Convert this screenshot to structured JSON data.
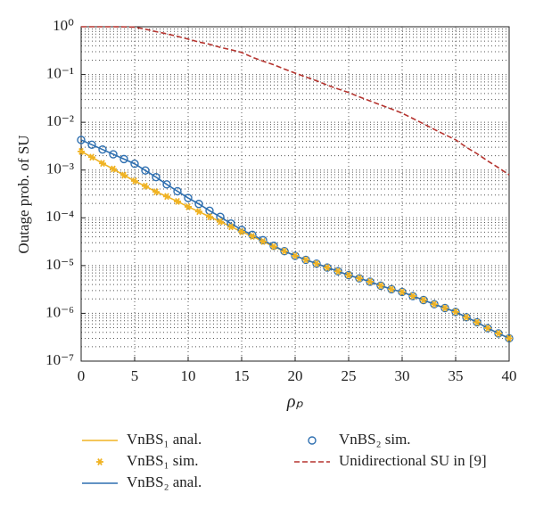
{
  "chart_data": {
    "type": "line",
    "log_y": true,
    "grid": true,
    "minor_grid": true,
    "xlabel": "ρₚ",
    "ylabel": "Outage prob. of SU",
    "x": [
      0,
      1,
      2,
      3,
      4,
      5,
      6,
      7,
      8,
      9,
      10,
      11,
      12,
      13,
      14,
      15,
      16,
      17,
      18,
      19,
      20,
      21,
      22,
      23,
      24,
      25,
      26,
      27,
      28,
      29,
      30,
      31,
      32,
      33,
      34,
      35,
      36,
      37,
      38,
      39,
      40
    ],
    "xlim": [
      0,
      40
    ],
    "xticks": [
      0,
      5,
      10,
      15,
      20,
      25,
      30,
      35,
      40
    ],
    "ylim": [
      1e-07,
      1
    ],
    "yticks": [
      {
        "value": 1e-07,
        "label": "10⁻⁷"
      },
      {
        "value": 1e-06,
        "label": "10⁻⁶"
      },
      {
        "value": 1e-05,
        "label": "10⁻⁵"
      },
      {
        "value": 0.0001,
        "label": "10⁻⁴"
      },
      {
        "value": 0.001,
        "label": "10⁻³"
      },
      {
        "value": 0.01,
        "label": "10⁻²"
      },
      {
        "value": 0.1,
        "label": "10⁻¹"
      },
      {
        "value": 1,
        "label": "10⁰"
      }
    ],
    "series": [
      {
        "name": "VnBS₁ anal.",
        "color": "#f0b323",
        "style": "line",
        "values": [
          0.00245,
          0.00186,
          0.00138,
          0.00105,
          0.00078,
          0.00059,
          0.00046,
          0.00035,
          0.00028,
          0.00022,
          0.00017,
          0.000135,
          0.000105,
          8.3e-05,
          6.5e-05,
          5.1e-05,
          4.1e-05,
          3.2e-05,
          2.5e-05,
          2e-05,
          1.6e-05,
          1.32e-05,
          1.1e-05,
          9.1e-06,
          7.6e-06,
          6.3e-06,
          5.4e-06,
          4.6e-06,
          3.8e-06,
          3.2e-06,
          2.8e-06,
          2.3e-06,
          1.9e-06,
          1.55e-06,
          1.29e-06,
          1.07e-06,
          8.3e-07,
          6.5e-07,
          4.9e-07,
          3.8e-07,
          3e-07
        ]
      },
      {
        "name": "VnBS₁ sim.",
        "color": "#f0b323",
        "style": "star",
        "values": [
          0.00245,
          0.00186,
          0.00138,
          0.00105,
          0.00078,
          0.00059,
          0.00046,
          0.00035,
          0.00028,
          0.00022,
          0.00017,
          0.000135,
          0.000105,
          8.3e-05,
          6.5e-05,
          5.1e-05,
          4.1e-05,
          3.2e-05,
          2.5e-05,
          2e-05,
          1.6e-05,
          1.32e-05,
          1.1e-05,
          9.1e-06,
          7.6e-06,
          6.3e-06,
          5.4e-06,
          4.6e-06,
          3.8e-06,
          3.2e-06,
          2.8e-06,
          2.3e-06,
          1.9e-06,
          1.55e-06,
          1.29e-06,
          1.07e-06,
          8.3e-07,
          6.5e-07,
          4.9e-07,
          3.8e-07,
          3e-07
        ]
      },
      {
        "name": "VnBS₂ anal.",
        "color": "#2e6fb0",
        "style": "line",
        "values": [
          0.00427,
          0.00339,
          0.00269,
          0.00214,
          0.0017,
          0.00135,
          0.00098,
          0.00071,
          0.0005,
          0.00036,
          0.00026,
          0.000195,
          0.000141,
          0.000105,
          7.6e-05,
          5.6e-05,
          4.4e-05,
          3.4e-05,
          2.6e-05,
          2e-05,
          1.6e-05,
          1.32e-05,
          1.1e-05,
          9.1e-06,
          7.6e-06,
          6.3e-06,
          5.4e-06,
          4.6e-06,
          3.8e-06,
          3.2e-06,
          2.8e-06,
          2.3e-06,
          1.9e-06,
          1.55e-06,
          1.29e-06,
          1.07e-06,
          8.3e-07,
          6.5e-07,
          4.9e-07,
          3.8e-07,
          3e-07
        ]
      },
      {
        "name": "VnBS₂ sim.",
        "color": "#2e6fb0",
        "style": "circle",
        "values": [
          0.00427,
          0.00339,
          0.00269,
          0.00214,
          0.0017,
          0.00135,
          0.00098,
          0.00071,
          0.0005,
          0.00036,
          0.00026,
          0.000195,
          0.000141,
          0.000105,
          7.6e-05,
          5.6e-05,
          4.4e-05,
          3.4e-05,
          2.6e-05,
          2e-05,
          1.6e-05,
          1.32e-05,
          1.1e-05,
          9.1e-06,
          7.6e-06,
          6.3e-06,
          5.4e-06,
          4.6e-06,
          3.8e-06,
          3.2e-06,
          2.8e-06,
          2.3e-06,
          1.9e-06,
          1.55e-06,
          1.29e-06,
          1.07e-06,
          8.3e-07,
          6.5e-07,
          4.9e-07,
          3.8e-07,
          3e-07
        ]
      },
      {
        "name": "Unidirectional SU in [9]",
        "color": "#b5332e",
        "style": "dashed",
        "values": [
          1,
          1,
          1,
          1,
          0.995,
          0.98,
          0.89,
          0.79,
          0.71,
          0.63,
          0.55,
          0.48,
          0.43,
          0.37,
          0.33,
          0.29,
          0.23,
          0.19,
          0.16,
          0.13,
          0.107,
          0.089,
          0.074,
          0.06,
          0.05,
          0.042,
          0.034,
          0.028,
          0.023,
          0.019,
          0.0155,
          0.012,
          0.0093,
          0.0071,
          0.0055,
          0.0043,
          0.003,
          0.0022,
          0.00155,
          0.00112,
          0.00079
        ]
      }
    ]
  }
}
